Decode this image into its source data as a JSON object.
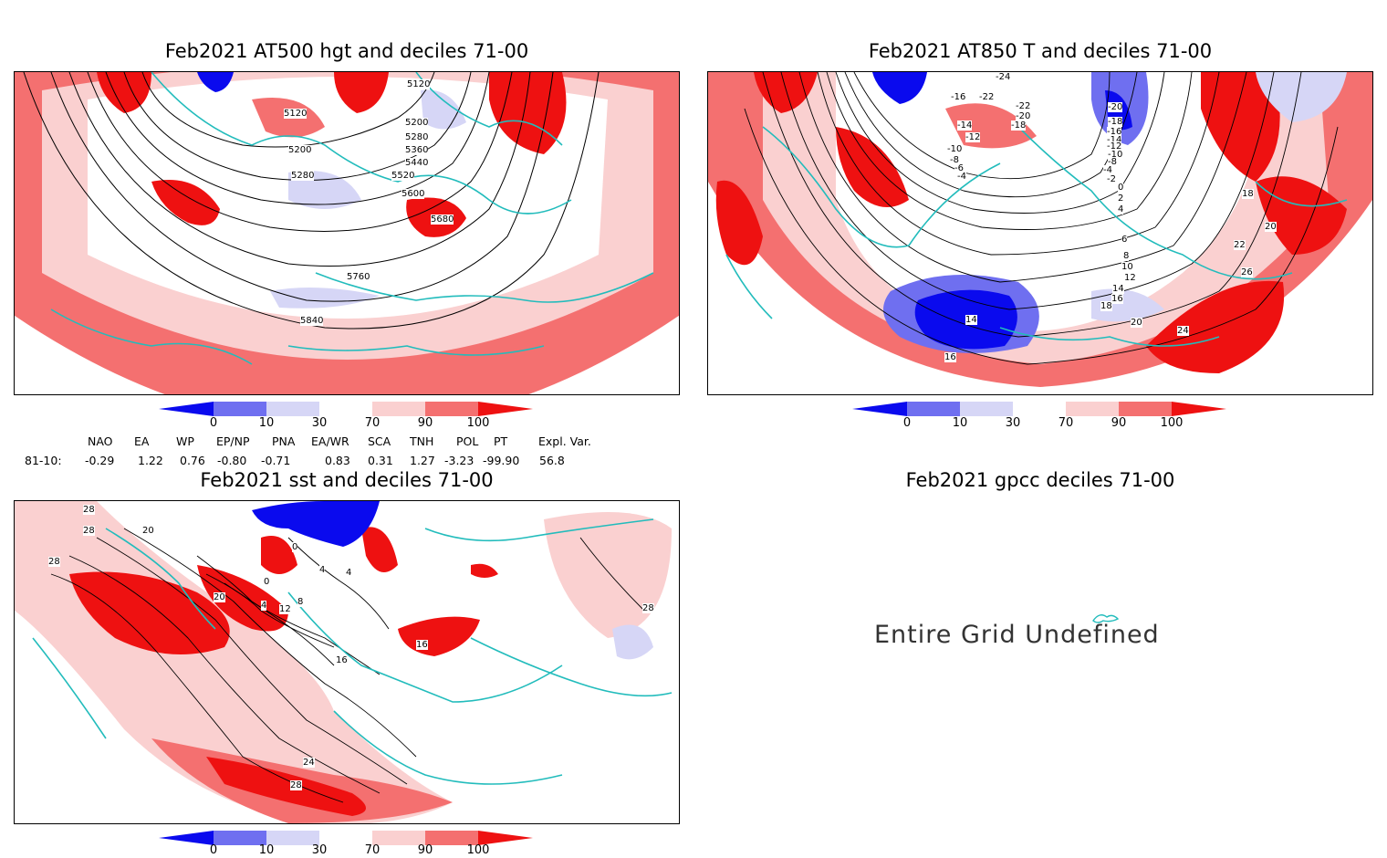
{
  "colors": {
    "dark_blue": "#0a0aee",
    "mid_blue": "#6f6ff0",
    "light_blue": "#d6d6f6",
    "white": "#ffffff",
    "light_red": "#fad0d0",
    "mid_red": "#f47070",
    "dark_red": "#ee1111",
    "coast": "#22bcbc",
    "contour": "#000000"
  },
  "panels": [
    {
      "title": "Feb2021 AT500 hgt and deciles 71-00",
      "contour_labels": [
        "5120",
        "5120",
        "5200",
        "5200",
        "5280",
        "5280",
        "5360",
        "5440",
        "5520",
        "5600",
        "5680",
        "5760",
        "5840"
      ]
    },
    {
      "title": "Feb2021 AT850 T and deciles 71-00",
      "contour_labels": [
        "-24",
        "-22",
        "-22",
        "-20",
        "-18",
        "-16",
        "-14",
        "-12",
        "-10",
        "-8",
        "-6",
        "-4",
        "-2",
        "0",
        "2",
        "4",
        "6",
        "8",
        "10",
        "12",
        "14",
        "14",
        "16",
        "16",
        "18",
        "18",
        "20",
        "20",
        "22",
        "24",
        "26",
        "-20",
        "-18",
        "-16",
        "-14",
        "-12",
        "-10",
        "-8",
        "-4"
      ]
    },
    {
      "title": "Feb2021 sst and deciles 71-00",
      "contour_labels": [
        "28",
        "28",
        "28",
        "20",
        "20",
        "0",
        "0",
        "4",
        "4",
        "8",
        "12",
        "16",
        "16",
        "24",
        "28",
        "28",
        "4"
      ]
    },
    {
      "title": "Feb2021 gpcc deciles 71-00",
      "message": "Entire Grid Undefined"
    }
  ],
  "colorbar": {
    "labels": [
      "0",
      "10",
      "30",
      "70",
      "90",
      "100"
    ]
  },
  "indices": {
    "headers": [
      "NAO",
      "EA",
      "WP",
      "EP/NP",
      "PNA",
      "EA/WR",
      "SCA",
      "TNH",
      "POL",
      "PT",
      "Expl. Var."
    ],
    "row_label": "81-10:",
    "values": [
      "-0.29",
      "1.22",
      "0.76",
      "-0.80",
      "-0.71",
      "0.83",
      "0.31",
      "1.27",
      "-3.23",
      "-99.90",
      "56.8"
    ]
  }
}
